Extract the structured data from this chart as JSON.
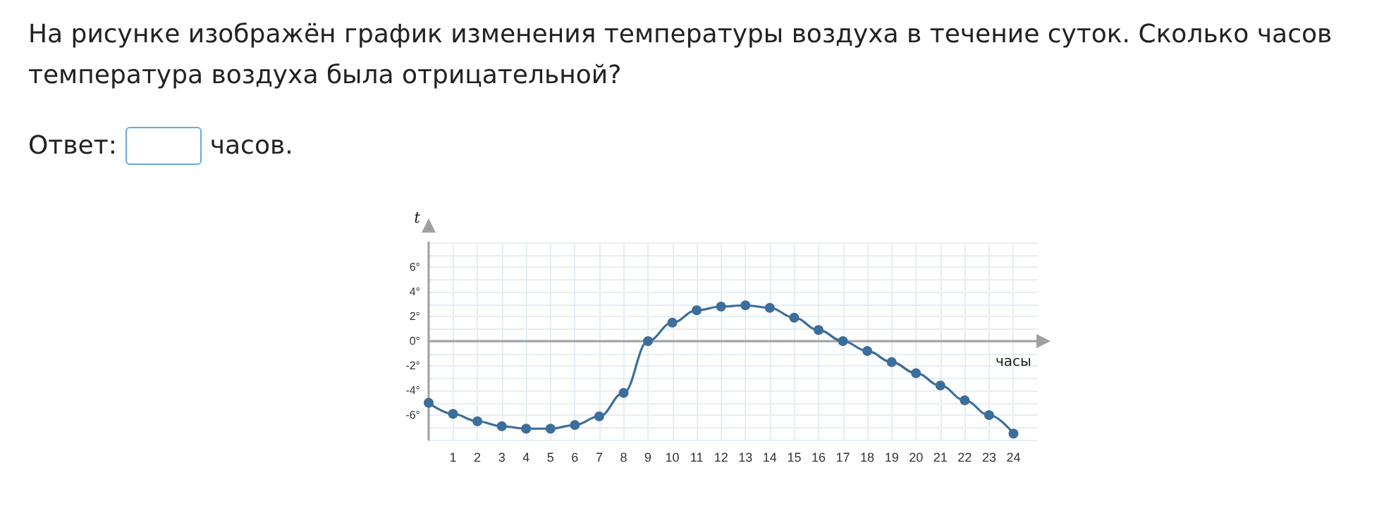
{
  "chart_data": {
    "type": "line",
    "title": "На рисунке изображён график изменения температуры воздуха в течение суток. Сколько часов температура воздуха была отрицательной?",
    "annotations": [
      "Ответ:",
      "часов."
    ],
    "xlabel": "часы",
    "ylabel": "t",
    "x": [
      0,
      1,
      2,
      3,
      4,
      5,
      6,
      7,
      8,
      9,
      10,
      11,
      12,
      13,
      14,
      15,
      16,
      17,
      18,
      19,
      20,
      21,
      22,
      23,
      24
    ],
    "series": [
      {
        "color": "#3b6e9a",
        "values": [
          -5.0,
          -5.9,
          -6.5,
          -6.9,
          -7.1,
          -7.1,
          -6.8,
          -6.1,
          -4.2,
          0,
          1.5,
          2.5,
          2.8,
          2.9,
          2.7,
          1.9,
          0.9,
          0,
          -0.8,
          -1.7,
          -2.6,
          -3.6,
          -4.8,
          -6.0,
          -7.5
        ]
      }
    ],
    "xlim": [
      0,
      25
    ],
    "xticks": [
      1,
      2,
      3,
      4,
      5,
      6,
      7,
      8,
      9,
      10,
      11,
      12,
      13,
      14,
      15,
      16,
      17,
      18,
      19,
      20,
      21,
      22,
      23,
      24
    ],
    "ylim": [
      -8,
      8
    ],
    "yticks": [
      {
        "value": -8,
        "label": null
      },
      {
        "value": -7,
        "label": null
      },
      {
        "value": -6,
        "label": "-6°"
      },
      {
        "value": -5,
        "label": null
      },
      {
        "value": -4,
        "label": "-4°"
      },
      {
        "value": -3,
        "label": null
      },
      {
        "value": -2,
        "label": "-2°"
      },
      {
        "value": -1,
        "label": null
      },
      {
        "value": 0,
        "label": "0°"
      },
      {
        "value": 1,
        "label": null
      },
      {
        "value": 2,
        "label": "2°"
      },
      {
        "value": 3,
        "label": null
      },
      {
        "value": 4,
        "label": "4°"
      },
      {
        "value": 5,
        "label": null
      },
      {
        "value": 6,
        "label": "6°"
      },
      {
        "value": 7,
        "label": null
      },
      {
        "value": 8,
        "label": null
      }
    ],
    "grid": true,
    "marker": "circle",
    "line_style": "solid"
  }
}
